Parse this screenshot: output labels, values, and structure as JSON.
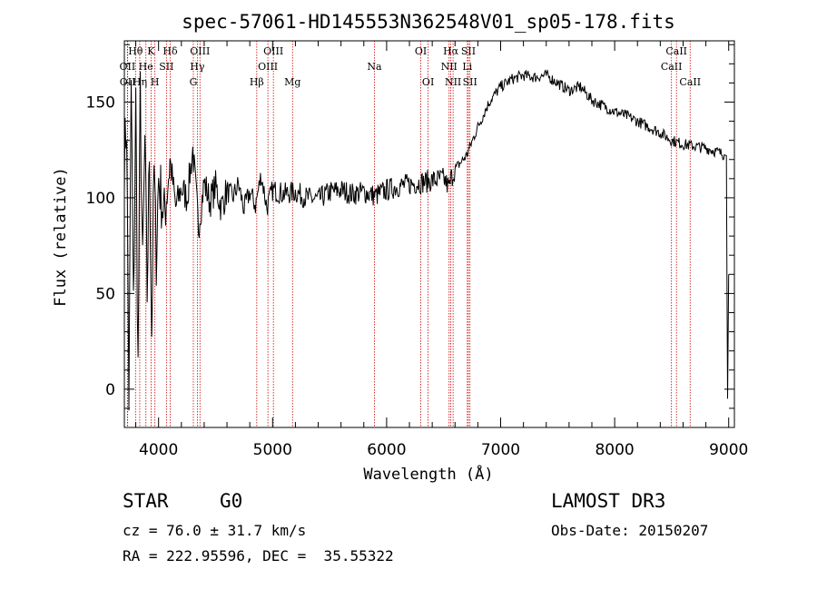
{
  "chart_data": {
    "type": "line",
    "title": "spec-57061-HD145553N362548V01_sp05-178.fits",
    "xlabel": "Wavelength (Å)",
    "ylabel": "Flux (relative)",
    "xlim": [
      3700,
      9050
    ],
    "ylim": [
      -20,
      182
    ],
    "xticks": [
      4000,
      5000,
      6000,
      7000,
      8000,
      9000
    ],
    "yticks": [
      0,
      50,
      100,
      150
    ],
    "series": [
      {
        "name": "flux",
        "x": [
          3700,
          3720,
          3740,
          3760,
          3780,
          3800,
          3820,
          3840,
          3860,
          3880,
          3900,
          3920,
          3940,
          3960,
          3980,
          4000,
          4050,
          4100,
          4150,
          4200,
          4250,
          4300,
          4350,
          4400,
          4450,
          4500,
          4550,
          4600,
          4650,
          4700,
          4750,
          4800,
          4850,
          4900,
          4950,
          5000,
          5100,
          5200,
          5300,
          5400,
          5500,
          5600,
          5700,
          5800,
          5900,
          6000,
          6100,
          6200,
          6300,
          6400,
          6500,
          6550,
          6563,
          6600,
          6700,
          6800,
          6900,
          7000,
          7100,
          7200,
          7300,
          7400,
          7500,
          7600,
          7700,
          7800,
          7900,
          8000,
          8100,
          8200,
          8300,
          8400,
          8500,
          8600,
          8700,
          8800,
          8900,
          8980,
          8990,
          9000
        ],
        "y": [
          120,
          140,
          -5,
          160,
          40,
          150,
          10,
          155,
          60,
          130,
          50,
          125,
          30,
          115,
          70,
          110,
          90,
          120,
          95,
          105,
          100,
          125,
          85,
          108,
          98,
          106,
          95,
          104,
          100,
          107,
          94,
          103,
          96,
          112,
          95,
          104,
          102,
          103,
          100,
          99,
          103,
          104,
          102,
          103,
          101,
          104,
          106,
          107,
          108,
          109,
          110,
          105,
          110,
          115,
          122,
          137,
          150,
          158,
          162,
          164,
          163,
          164,
          160,
          156,
          158,
          151,
          148,
          145,
          143,
          140,
          137,
          134,
          130,
          128,
          127,
          126,
          124,
          122,
          -5,
          60
        ]
      }
    ],
    "lines": [
      {
        "name": "Hθ",
        "wave": 3798,
        "row": 1
      },
      {
        "name": "OII",
        "wave": 3727,
        "row": 2
      },
      {
        "name": "OII",
        "wave": 3729,
        "row": 3
      },
      {
        "name": "K",
        "wave": 3934,
        "row": 1
      },
      {
        "name": "He",
        "wave": 3889,
        "row": 2
      },
      {
        "name": "Hη",
        "wave": 3835,
        "row": 3
      },
      {
        "name": "Hδ",
        "wave": 4102,
        "row": 1
      },
      {
        "name": "SII",
        "wave": 4069,
        "row": 2
      },
      {
        "name": "H",
        "wave": 3968,
        "row": 3
      },
      {
        "name": "OIII",
        "wave": 4363,
        "row": 1
      },
      {
        "name": "Hγ",
        "wave": 4340,
        "row": 2
      },
      {
        "name": "G",
        "wave": 4305,
        "row": 3
      },
      {
        "name": "OIII",
        "wave": 5007,
        "row": 1
      },
      {
        "name": "OIII",
        "wave": 4959,
        "row": 2
      },
      {
        "name": "Hβ",
        "wave": 4861,
        "row": 3
      },
      {
        "name": "Mg",
        "wave": 5175,
        "row": 3
      },
      {
        "name": "Na",
        "wave": 5893,
        "row": 2
      },
      {
        "name": "OI",
        "wave": 6300,
        "row": 1
      },
      {
        "name": "OI",
        "wave": 6364,
        "row": 3
      },
      {
        "name": "Hα",
        "wave": 6563,
        "row": 1
      },
      {
        "name": "NII",
        "wave": 6548,
        "row": 2
      },
      {
        "name": "NII",
        "wave": 6583,
        "row": 3
      },
      {
        "name": "SII",
        "wave": 6717,
        "row": 1
      },
      {
        "name": "Li",
        "wave": 6708,
        "row": 2
      },
      {
        "name": "SII",
        "wave": 6731,
        "row": 3
      },
      {
        "name": "CaII",
        "wave": 8542,
        "row": 1
      },
      {
        "name": "CaII",
        "wave": 8498,
        "row": 2
      },
      {
        "name": "CaII",
        "wave": 8662,
        "row": 3
      }
    ]
  },
  "info": {
    "object_class": "STAR",
    "subclass": "G0",
    "survey": "LAMOST DR3",
    "redshift": "cz = 76.0 ± 31.7 km/s",
    "obs_date": "Obs-Date: 20150207",
    "coords": "RA = 222.95596, DEC =  35.55322"
  },
  "colors": {
    "spectrum": "#000000",
    "line_markers": "#cc0000",
    "axes": "#000000"
  }
}
